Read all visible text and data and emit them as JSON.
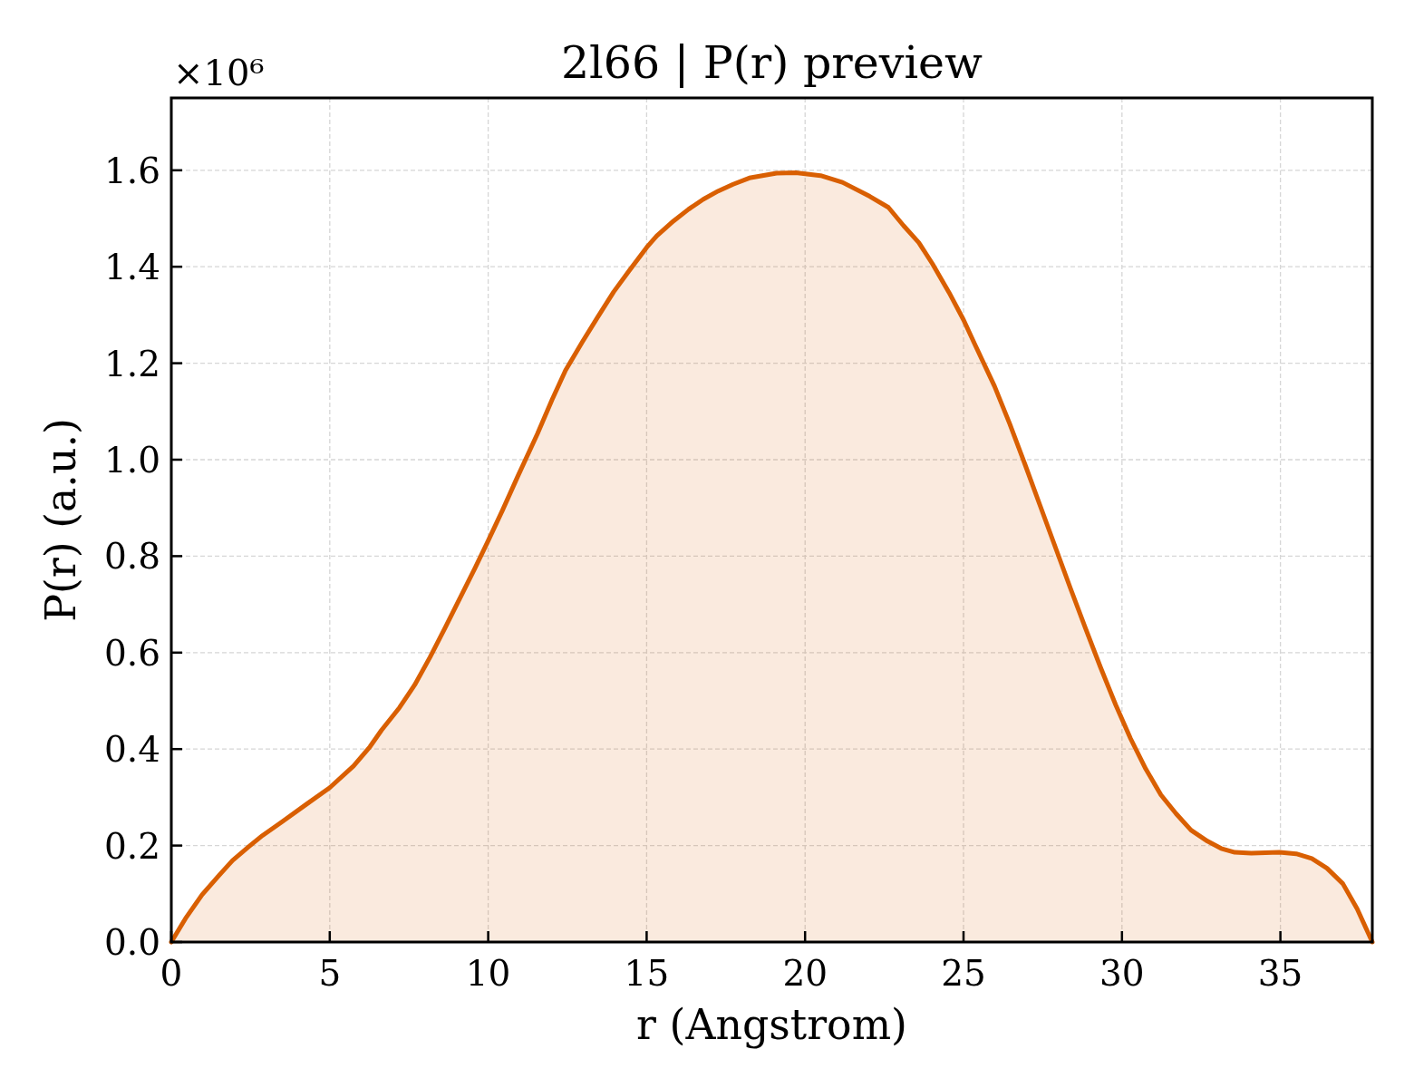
{
  "chart_data": {
    "type": "area",
    "title": "2l66 | P(r) preview",
    "xlabel": "r (Angstrom)",
    "ylabel": "P(r) (a.u.)",
    "annotations": [
      "×10⁶"
    ],
    "x": [
      0,
      0.45,
      0.97,
      1.49,
      1.93,
      2.45,
      2.88,
      3.49,
      4.27,
      5,
      5.75,
      6.27,
      6.63,
      7.2,
      7.68,
      8.16,
      8.63,
      9.11,
      9.59,
      10,
      10.45,
      10.93,
      11.55,
      12.02,
      12.44,
      12.96,
      13.44,
      13.96,
      14.44,
      15,
      15.32,
      15.85,
      16.32,
      16.79,
      17.26,
      17.73,
      18.24,
      19.1,
      19.71,
      20.49,
      21.18,
      22.04,
      22.63,
      23.11,
      23.59,
      24.02,
      24.54,
      25,
      25.35,
      25.98,
      26.46,
      26.93,
      27.41,
      27.89,
      28.37,
      28.84,
      29.32,
      29.8,
      30.27,
      30.75,
      31.23,
      31.71,
      32.18,
      32.7,
      33.13,
      33.56,
      34.08,
      34.97,
      35.5,
      35.99,
      36.47,
      36.97,
      37.42,
      37.9
    ],
    "values": [
      0,
      0.049,
      0.098,
      0.137,
      0.169,
      0.198,
      0.221,
      0.249,
      0.286,
      0.32,
      0.365,
      0.405,
      0.439,
      0.486,
      0.533,
      0.59,
      0.65,
      0.713,
      0.776,
      0.832,
      0.895,
      0.965,
      1.053,
      1.125,
      1.185,
      1.243,
      1.294,
      1.348,
      1.391,
      1.44,
      1.464,
      1.495,
      1.519,
      1.54,
      1.557,
      1.571,
      1.584,
      1.594,
      1.595,
      1.589,
      1.575,
      1.546,
      1.523,
      1.485,
      1.45,
      1.406,
      1.347,
      1.29,
      1.24,
      1.152,
      1.074,
      0.992,
      0.906,
      0.82,
      0.734,
      0.652,
      0.57,
      0.492,
      0.422,
      0.359,
      0.305,
      0.266,
      0.232,
      0.209,
      0.194,
      0.186,
      0.184,
      0.186,
      0.183,
      0.173,
      0.153,
      0.121,
      0.069,
      0
    ],
    "color": "#d95f02",
    "xlim": [
      0,
      37.9
    ],
    "ylim": [
      0,
      1.75
    ],
    "xticks": [
      0,
      5,
      10,
      15,
      20,
      25,
      30,
      35
    ],
    "yticks": [
      {
        "value": 0,
        "label": "0.0"
      },
      0.2,
      0.4,
      0.6,
      0.8,
      {
        "value": 1,
        "label": "1.0"
      },
      1.2,
      1.4,
      1.6
    ],
    "grid": true
  }
}
